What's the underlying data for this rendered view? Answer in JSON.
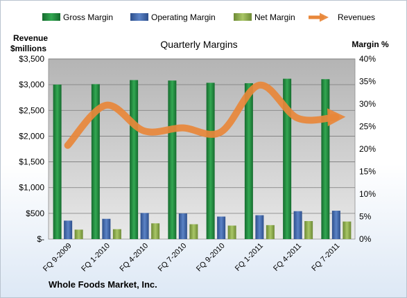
{
  "chart_data": {
    "type": "bar",
    "title": "Quarterly Margins",
    "footer": "Whole Foods Market, Inc.",
    "left_axis_title": [
      "Revenue",
      "$millions"
    ],
    "right_axis_title": "Margin %",
    "categories": [
      "FQ 9-2009",
      "FQ 1-2010",
      "FQ 4-2010",
      "FQ 7-2010",
      "FQ 9-2010",
      "FQ 1-2011",
      "FQ 4-2011",
      "FQ 7-2011"
    ],
    "left_axis": {
      "min": 0,
      "max": 3500,
      "step": 500,
      "tick_labels": [
        "$-",
        "$500",
        "$1,000",
        "$1,500",
        "$2,000",
        "$2,500",
        "$3,000",
        "$3,500"
      ]
    },
    "right_axis": {
      "min": 0,
      "max": 40,
      "step": 5,
      "tick_labels": [
        "0%",
        "5%",
        "10%",
        "15%",
        "20%",
        "25%",
        "30%",
        "35%",
        "40%"
      ]
    },
    "series": [
      {
        "name": "Gross Margin",
        "kind": "bar",
        "axis": "right",
        "color": "#2e9a4a",
        "values": [
          34.3,
          34.4,
          35.3,
          35.2,
          34.7,
          34.6,
          35.6,
          35.5
        ]
      },
      {
        "name": "Operating Margin",
        "kind": "bar",
        "axis": "right",
        "color": "#4f74b8",
        "values": [
          4.1,
          4.5,
          5.8,
          5.7,
          5.0,
          5.3,
          6.2,
          6.3
        ]
      },
      {
        "name": "Net Margin",
        "kind": "bar",
        "axis": "right",
        "color": "#9bbb59",
        "values": [
          2.1,
          2.2,
          3.5,
          3.3,
          3.0,
          3.1,
          4.0,
          3.9
        ]
      },
      {
        "name": "Revenues",
        "kind": "line",
        "axis": "left",
        "color": "#e8873a",
        "values": [
          1820,
          2600,
          2100,
          2160,
          2080,
          2990,
          2350,
          2370
        ]
      }
    ],
    "grid": true,
    "legend": "top"
  }
}
